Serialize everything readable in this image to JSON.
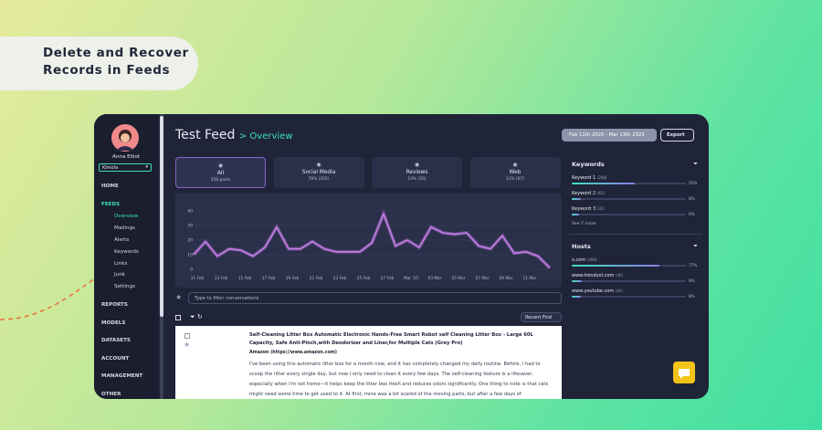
{
  "banner": {
    "lines": [
      "Delete and Recover",
      "Records in Feeds"
    ]
  },
  "sidebar": {
    "user": "Anna Elliot",
    "workspace": "Kimola",
    "menu": [
      {
        "label": "HOME",
        "level": 0
      },
      {
        "label": "FEEDS",
        "level": 0,
        "active": true
      },
      {
        "label": "Overview",
        "level": 1,
        "active": true
      },
      {
        "label": "Mailings",
        "level": 1
      },
      {
        "label": "Alerts",
        "level": 1
      },
      {
        "label": "Keywords",
        "level": 1
      },
      {
        "label": "Links",
        "level": 1
      },
      {
        "label": "Junk",
        "level": 1
      },
      {
        "label": "Settings",
        "level": 1
      },
      {
        "label": "REPORTS",
        "level": 0
      },
      {
        "label": "MODELS",
        "level": 0
      },
      {
        "label": "DATASETS",
        "level": 0
      },
      {
        "label": "ACCOUNT",
        "level": 0
      },
      {
        "label": "MANAGEMENT",
        "level": 0
      },
      {
        "label": "OTHER",
        "level": 0
      }
    ]
  },
  "header": {
    "title": "Test Feed",
    "subtitle": "> Overview",
    "date_range": "Feb 11th 2025 - Mar 13th 2025",
    "export": "Export"
  },
  "tabs": [
    {
      "label": "All",
      "detail": "558 posts",
      "active": true
    },
    {
      "label": "Social Media",
      "detail": "78% (435)"
    },
    {
      "label": "Reviews",
      "detail": "10% (56)"
    },
    {
      "label": "Web",
      "detail": "12% (67)"
    }
  ],
  "chart_data": {
    "type": "line",
    "categories": [
      "11 Feb",
      null,
      "13 Feb",
      null,
      "15 Feb",
      null,
      "17 Feb",
      null,
      "19 Feb",
      null,
      "21 Feb",
      null,
      "23 Feb",
      null,
      "25 Feb",
      null,
      "27 Feb",
      null,
      "Mar '25",
      null,
      "03 Mar",
      null,
      "05 Mar",
      null,
      "07 Mar",
      null,
      "09 Mar",
      null,
      "11 Mar",
      null,
      null
    ],
    "values": [
      10,
      19,
      9,
      14,
      13,
      9,
      15,
      29,
      14,
      14,
      19,
      14,
      12,
      12,
      12,
      18,
      38,
      16,
      20,
      15,
      29,
      25,
      24,
      25,
      16,
      14,
      23,
      11,
      12,
      9,
      1
    ],
    "color": "#c77dea",
    "ylim": [
      0,
      40
    ],
    "yticks": [
      0,
      10,
      20,
      30,
      40
    ],
    "grid": true
  },
  "filter_placeholder": "Type to filter conversations",
  "sort": "Recent First",
  "post": {
    "title": "Self-Cleaning Litter Box Automatic Electronic Hands-Free Smart Robot self Cleaning Litter Box - Large 60L Capacity, Safe Anti-Pinch,with Deodorizer and Liner,for Multiple Cats (Grey Pro)",
    "source": "Amazon (https://www.amazon.com)",
    "body": "I've been using this automatic litter box for a month now, and it has completely changed my daily routine. Before, I had to scoop the litter every single day, but now I only need to clean it every few days. The self-cleaning feature is a lifesaver, especially when I'm not home—it helps keep the litter box fresh and reduces odors significantly. One thing to note is that cats might need some time to get used to it. At first, mine was a bit scared of the moving parts, but after a few days of"
  },
  "keywords": {
    "title": "Keywords",
    "items": [
      {
        "label": "Keyword 1",
        "count": "(288)",
        "share": 55,
        "share_label": "55%"
      },
      {
        "label": "Keyword 2",
        "count": "(42)",
        "share": 8,
        "share_label": "8%"
      },
      {
        "label": "Keyword 3",
        "count": "(32)",
        "share": 6,
        "share_label": "6%"
      }
    ],
    "more": "See 7 more"
  },
  "hosts": {
    "title": "Hosts",
    "items": [
      {
        "label": "x.com",
        "count": "(390)",
        "share": 77,
        "share_label": "77%"
      },
      {
        "label": "www.trendyol.com",
        "count": "(46)",
        "share": 9,
        "share_label": "9%"
      },
      {
        "label": "www.youtube.com",
        "count": "(40)",
        "share": 8,
        "share_label": "8%"
      }
    ]
  }
}
